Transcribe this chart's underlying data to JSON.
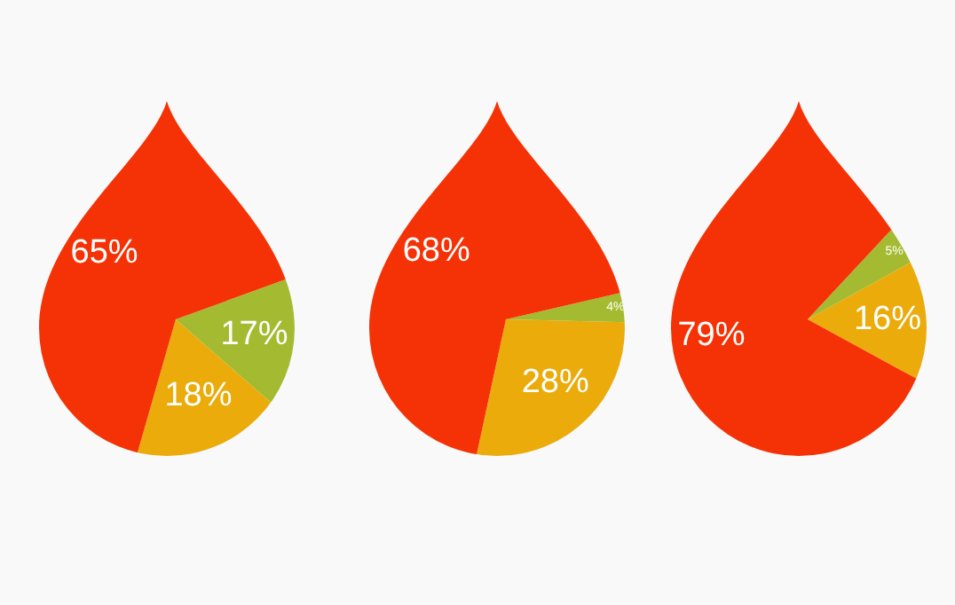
{
  "chart_data": [
    {
      "type": "pie",
      "categories": [
        null,
        null,
        null
      ],
      "values": [
        17,
        18,
        65
      ],
      "colors": [
        "#a4bb31",
        "#eaab0b",
        "#f53206"
      ],
      "value_labels": [
        "17%",
        "18%",
        "65%"
      ],
      "legend": false
    },
    {
      "type": "pie",
      "categories": [
        null,
        null,
        null
      ],
      "values": [
        4,
        28,
        68
      ],
      "colors": [
        "#a4bb31",
        "#eaab0b",
        "#f53206"
      ],
      "value_labels": [
        "4%",
        "28%",
        "68%"
      ],
      "legend": false
    },
    {
      "type": "pie",
      "categories": [
        null,
        null,
        null
      ],
      "values": [
        5,
        16,
        79
      ],
      "colors": [
        "#a4bb31",
        "#eaab0b",
        "#f53206"
      ],
      "value_labels": [
        "5%",
        "16%",
        "79%"
      ],
      "legend": false
    }
  ]
}
